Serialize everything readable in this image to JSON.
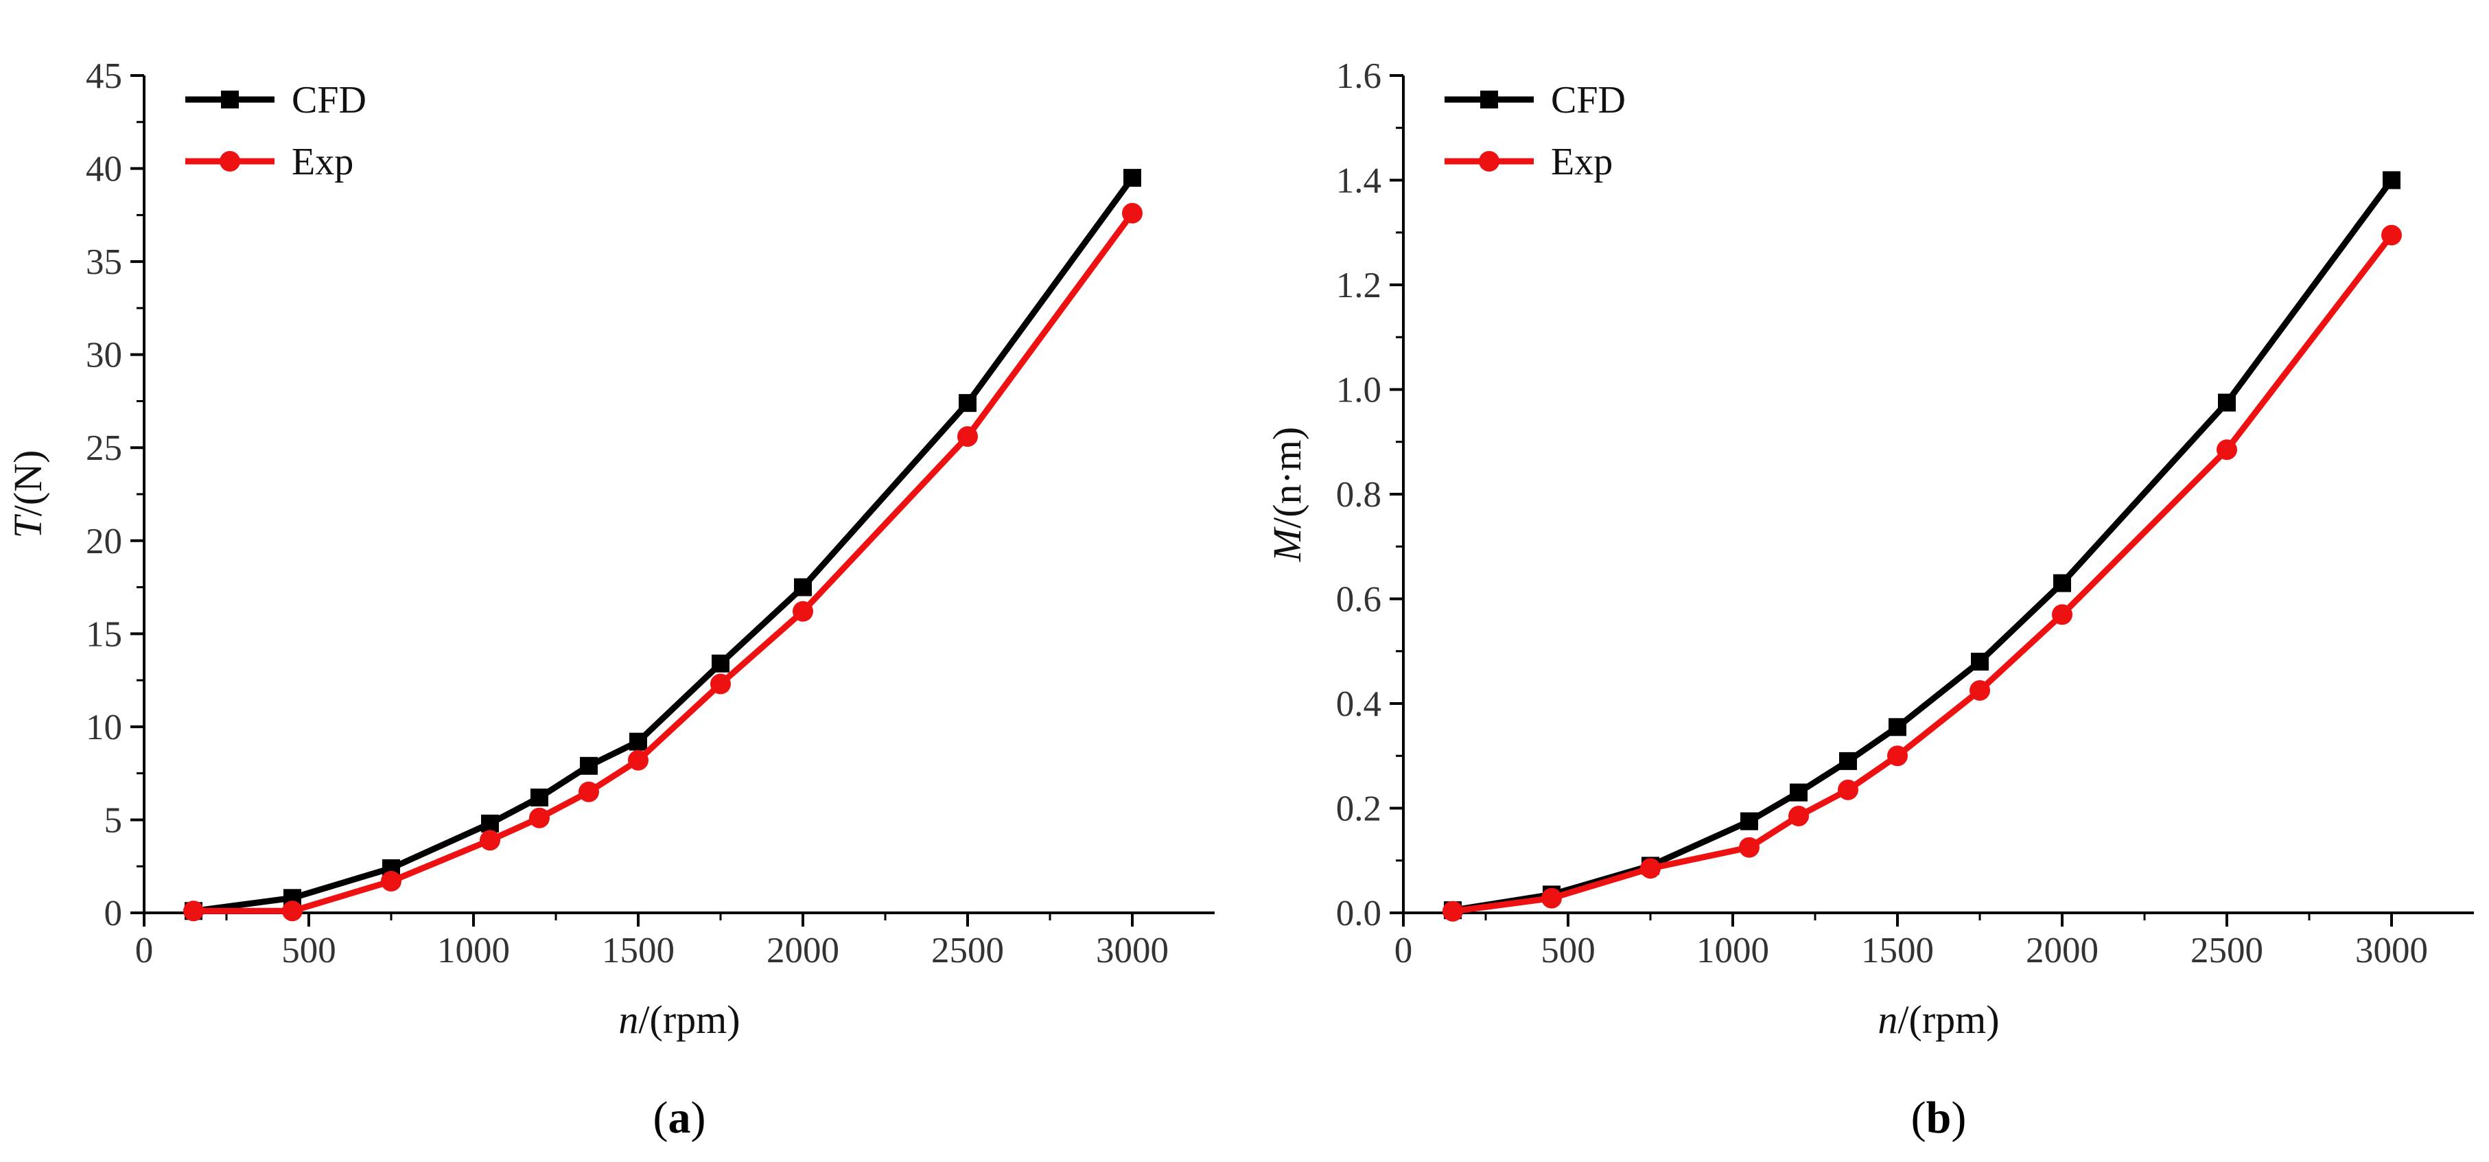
{
  "chart_data": [
    {
      "type": "line",
      "panel_label": "a",
      "xlabel": {
        "var": "n",
        "unit": "/(rpm)"
      },
      "ylabel": {
        "var": "T",
        "unit": "/(N)"
      },
      "xlim": [
        0,
        3250
      ],
      "ylim": [
        0,
        45
      ],
      "xticks": [
        0,
        500,
        1000,
        1500,
        2000,
        2500,
        3000
      ],
      "yticks": [
        0,
        5,
        10,
        15,
        20,
        25,
        30,
        35,
        40,
        45
      ],
      "legend_position": "top-left",
      "series": [
        {
          "name": "CFD",
          "color": "#000000",
          "marker": "square",
          "x": [
            150,
            450,
            750,
            1050,
            1200,
            1350,
            1500,
            1750,
            2000,
            2500,
            3000
          ],
          "y": [
            0.1,
            0.8,
            2.4,
            4.8,
            6.2,
            7.9,
            9.2,
            13.4,
            17.5,
            27.4,
            39.5
          ]
        },
        {
          "name": "Exp",
          "color": "#ee1111",
          "marker": "circle",
          "x": [
            150,
            450,
            750,
            1050,
            1200,
            1350,
            1500,
            1750,
            2000,
            2500,
            3000
          ],
          "y": [
            0.1,
            0.1,
            1.7,
            3.9,
            5.1,
            6.5,
            8.2,
            12.3,
            16.2,
            25.6,
            37.6
          ]
        }
      ]
    },
    {
      "type": "line",
      "panel_label": "b",
      "xlabel": {
        "var": "n",
        "unit": "/(rpm)"
      },
      "ylabel": {
        "var": "M",
        "unit": "/(n·m)"
      },
      "xlim": [
        0,
        3250
      ],
      "ylim": [
        0,
        1.6
      ],
      "xticks": [
        0,
        500,
        1000,
        1500,
        2000,
        2500,
        3000
      ],
      "yticks": [
        "0.0",
        "0.2",
        "0.4",
        "0.6",
        "0.8",
        "1.0",
        "1.2",
        "1.4",
        "1.6"
      ],
      "legend_position": "top-left",
      "series": [
        {
          "name": "CFD",
          "color": "#000000",
          "marker": "square",
          "x": [
            150,
            450,
            750,
            1050,
            1200,
            1350,
            1500,
            1750,
            2000,
            2500,
            3000
          ],
          "y": [
            0.005,
            0.035,
            0.09,
            0.175,
            0.23,
            0.29,
            0.355,
            0.48,
            0.63,
            0.975,
            1.4
          ]
        },
        {
          "name": "Exp",
          "color": "#ee1111",
          "marker": "circle",
          "x": [
            150,
            450,
            750,
            1050,
            1200,
            1350,
            1500,
            1750,
            2000,
            2500,
            3000
          ],
          "y": [
            0.003,
            0.028,
            0.085,
            0.125,
            0.185,
            0.235,
            0.3,
            0.425,
            0.57,
            0.885,
            1.295
          ]
        }
      ]
    }
  ]
}
